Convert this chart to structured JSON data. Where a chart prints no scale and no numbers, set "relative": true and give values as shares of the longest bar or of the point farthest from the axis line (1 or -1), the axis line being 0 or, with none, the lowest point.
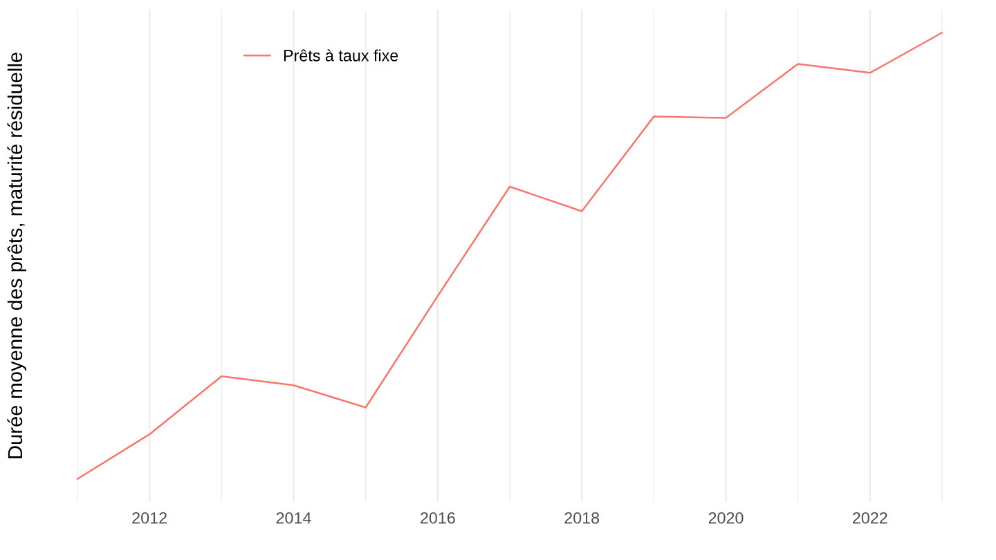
{
  "chart_data": {
    "type": "line",
    "relative": true,
    "ylabel": "Durée moyenne des prêts, maturité résiduelle",
    "x": [
      2011,
      2012,
      2013,
      2014,
      2015,
      2016,
      2017,
      2018,
      2019,
      2020,
      2021,
      2022,
      2023
    ],
    "series": [
      {
        "name": "Prêts à taux fixe",
        "color": "#f8766d",
        "values": [
          0,
          0.1,
          0.23,
          0.21,
          0.16,
          0.41,
          0.655,
          0.6,
          0.812,
          0.809,
          0.93,
          0.91,
          1
        ]
      }
    ],
    "xlim": [
      2011,
      2023
    ],
    "xticks": [
      {
        "value": 2011,
        "label": null
      },
      2012,
      {
        "value": 2013,
        "label": null
      },
      2014,
      {
        "value": 2015,
        "label": null
      },
      2016,
      {
        "value": 2017,
        "label": null
      },
      2018,
      {
        "value": 2019,
        "label": null
      },
      2020,
      {
        "value": 2021,
        "label": null
      },
      2022,
      {
        "value": 2023,
        "label": null
      }
    ],
    "grid": "x",
    "legend": "top left",
    "tick_labels": "x"
  }
}
